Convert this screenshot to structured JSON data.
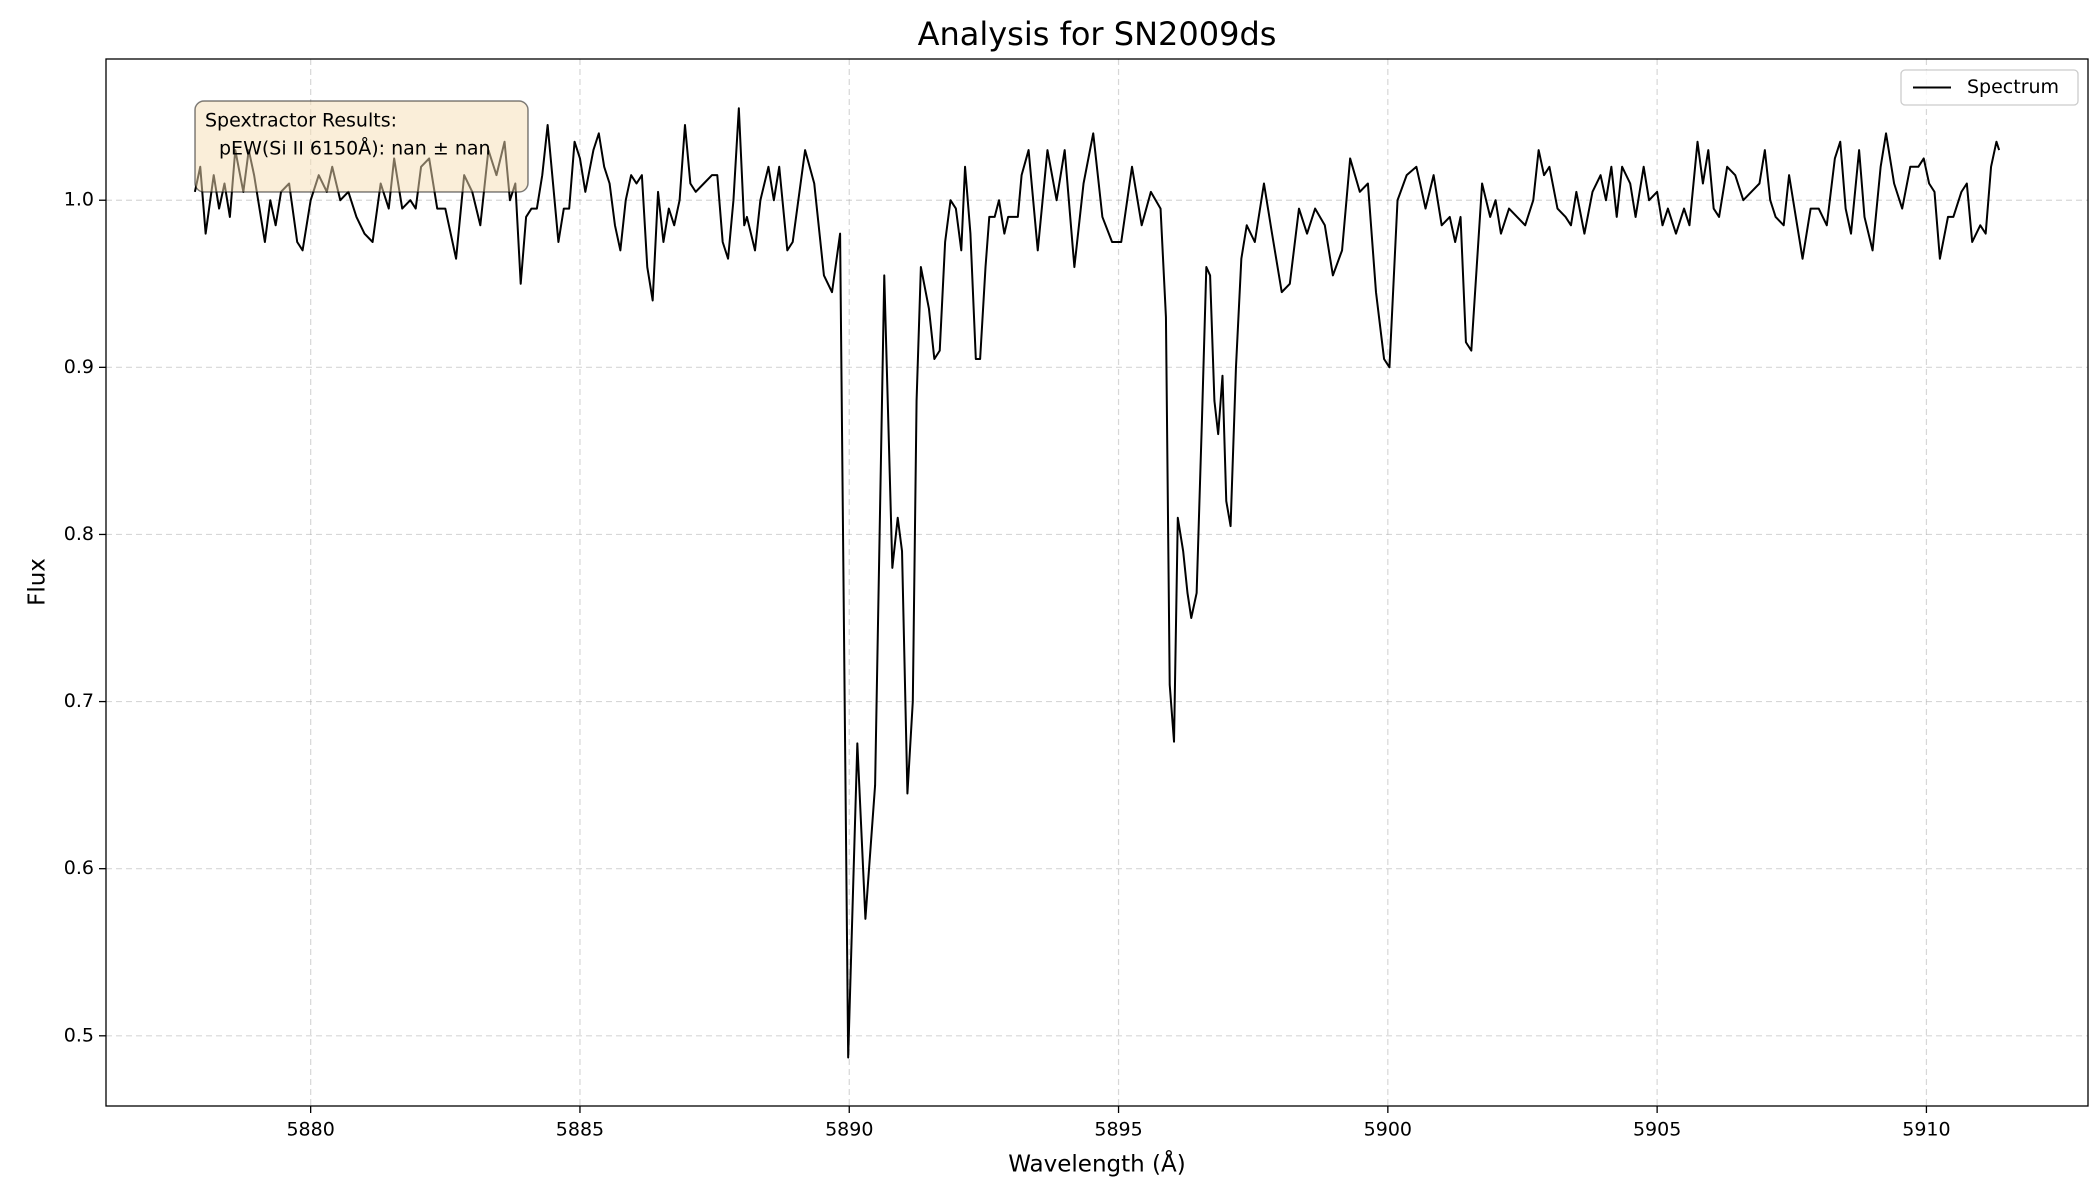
{
  "chart_data": {
    "type": "line",
    "title": "Analysis for SN2009ds",
    "xlabel": "Wavelength (Å)",
    "ylabel": "Flux",
    "annotation": [
      "Spextractor Results:",
      "pEW(Si II 6150Å): nan ± nan"
    ],
    "xlim": [
      5876.2,
      5913.0
    ],
    "ylim": [
      0.458,
      1.0845
    ],
    "xticks": [
      5880,
      5885,
      5890,
      5895,
      5900,
      5905,
      5910
    ],
    "yticks": [
      0.5,
      0.6,
      0.7,
      0.8,
      0.9,
      {
        "value": 1,
        "label": "1.0"
      }
    ],
    "grid": true,
    "legend": "upper right",
    "x": [
      5877.85,
      5877.95,
      5878.05,
      5878.2,
      5878.3,
      5878.4,
      5878.5,
      5878.6,
      5878.75,
      5878.85,
      5878.95,
      5879.05,
      5879.15,
      5879.25,
      5879.35,
      5879.45,
      5879.6,
      5879.75,
      5879.85,
      5880.0,
      5880.15,
      5880.3,
      5880.4,
      5880.55,
      5880.7,
      5880.85,
      5881.0,
      5881.15,
      5881.3,
      5881.45,
      5881.55,
      5881.7,
      5881.85,
      5881.95,
      5882.05,
      5882.2,
      5882.35,
      5882.5,
      5882.7,
      5882.85,
      5883.0,
      5883.15,
      5883.3,
      5883.45,
      5883.6,
      5883.7,
      5883.8,
      5883.9,
      5884.0,
      5884.1,
      5884.2,
      5884.3,
      5884.4,
      5884.5,
      5884.6,
      5884.7,
      5884.8,
      5884.9,
      5885.0,
      5885.1,
      5885.25,
      5885.35,
      5885.45,
      5885.55,
      5885.65,
      5885.75,
      5885.85,
      5885.95,
      5886.05,
      5886.15,
      5886.25,
      5886.35,
      5886.45,
      5886.55,
      5886.65,
      5886.75,
      5886.85,
      5886.95,
      5887.05,
      5887.15,
      5887.3,
      5887.45,
      5887.55,
      5887.65,
      5887.75,
      5887.85,
      5887.95,
      5888.05,
      5888.1,
      5888.25,
      5888.35,
      5888.5,
      5888.6,
      5888.7,
      5888.85,
      5888.95,
      5889.18,
      5889.35,
      5889.53,
      5889.68,
      5889.83,
      5889.98,
      5890.15,
      5890.3,
      5890.48,
      5890.65,
      5890.8,
      5890.9,
      5890.98,
      5891.08,
      5891.18,
      5891.25,
      5891.33,
      5891.48,
      5891.58,
      5891.68,
      5891.78,
      5891.88,
      5891.98,
      5892.08,
      5892.15,
      5892.25,
      5892.35,
      5892.43,
      5892.53,
      5892.6,
      5892.7,
      5892.78,
      5892.88,
      5892.95,
      5893.13,
      5893.2,
      5893.33,
      5893.5,
      5893.68,
      5893.85,
      5894.0,
      5894.18,
      5894.35,
      5894.53,
      5894.7,
      5894.88,
      5895.05,
      5895.25,
      5895.43,
      5895.6,
      5895.78,
      5895.88,
      5895.95,
      5896.03,
      5896.1,
      5896.2,
      5896.28,
      5896.35,
      5896.45,
      5896.55,
      5896.63,
      5896.7,
      5896.78,
      5896.85,
      5896.93,
      5897.0,
      5897.08,
      5897.18,
      5897.28,
      5897.38,
      5897.53,
      5897.7,
      5897.85,
      5898.03,
      5898.18,
      5898.35,
      5898.5,
      5898.65,
      5898.83,
      5898.98,
      5899.15,
      5899.3,
      5899.48,
      5899.63,
      5899.78,
      5899.93,
      5900.03,
      5900.18,
      5900.35,
      5900.53,
      5900.6,
      5900.7,
      5900.85,
      5901.0,
      5901.15,
      5901.25,
      5901.35,
      5901.45,
      5901.55,
      5901.65,
      5901.75,
      5901.9,
      5902.0,
      5902.1,
      5902.25,
      5902.4,
      5902.55,
      5902.7,
      5902.8,
      5902.9,
      5903.0,
      5903.15,
      5903.3,
      5903.4,
      5903.5,
      5903.65,
      5903.8,
      5903.95,
      5904.05,
      5904.15,
      5904.25,
      5904.35,
      5904.5,
      5904.6,
      5904.75,
      5904.85,
      5905.0,
      5905.1,
      5905.2,
      5905.35,
      5905.5,
      5905.6,
      5905.75,
      5905.85,
      5905.95,
      5906.05,
      5906.15,
      5906.3,
      5906.45,
      5906.6,
      5906.75,
      5906.9,
      5907.0,
      5907.1,
      5907.2,
      5907.35,
      5907.45,
      5907.6,
      5907.7,
      5907.85,
      5908.0,
      5908.15,
      5908.3,
      5908.4,
      5908.5,
      5908.6,
      5908.75,
      5908.85,
      5909.0,
      5909.15,
      5909.25,
      5909.4,
      5909.55,
      5909.7,
      5909.85,
      5909.95,
      5910.05,
      5910.15,
      5910.25,
      5910.4,
      5910.5,
      5910.65,
      5910.75,
      5910.85,
      5911.0,
      5911.1,
      5911.2,
      5911.3,
      5911.35
    ],
    "series": [
      {
        "name": "Spectrum",
        "color": "#000000",
        "values": [
          1.005,
          1.02,
          0.98,
          1.015,
          0.995,
          1.01,
          0.99,
          1.03,
          1.005,
          1.03,
          1.015,
          0.995,
          0.975,
          1.0,
          0.985,
          1.005,
          1.01,
          0.975,
          0.97,
          1.0,
          1.015,
          1.005,
          1.02,
          1.0,
          1.005,
          0.99,
          0.98,
          0.975,
          1.01,
          0.995,
          1.025,
          0.995,
          1.0,
          0.995,
          1.02,
          1.025,
          0.995,
          0.995,
          0.965,
          1.015,
          1.005,
          0.985,
          1.03,
          1.015,
          1.035,
          1.0,
          1.01,
          0.95,
          0.99,
          0.995,
          0.995,
          1.015,
          1.045,
          1.01,
          0.975,
          0.995,
          0.995,
          1.035,
          1.025,
          1.005,
          1.03,
          1.04,
          1.02,
          1.01,
          0.985,
          0.97,
          1.0,
          1.015,
          1.01,
          1.015,
          0.96,
          0.94,
          1.005,
          0.975,
          0.995,
          0.985,
          1.0,
          1.045,
          1.01,
          1.005,
          1.01,
          1.015,
          1.015,
          0.975,
          0.965,
          1.0,
          1.055,
          0.985,
          0.99,
          0.97,
          1.0,
          1.02,
          1.0,
          1.02,
          0.97,
          0.975,
          1.03,
          1.01,
          0.955,
          0.945,
          0.98,
          0.487,
          0.675,
          0.57,
          0.65,
          0.955,
          0.78,
          0.81,
          0.79,
          0.645,
          0.7,
          0.88,
          0.96,
          0.935,
          0.905,
          0.91,
          0.975,
          1.0,
          0.995,
          0.97,
          1.02,
          0.98,
          0.905,
          0.905,
          0.96,
          0.99,
          0.99,
          1.0,
          0.98,
          0.99,
          0.99,
          1.015,
          1.03,
          0.97,
          1.03,
          1.0,
          1.03,
          0.96,
          1.01,
          1.04,
          0.99,
          0.975,
          0.975,
          1.02,
          0.985,
          1.005,
          0.995,
          0.93,
          0.71,
          0.676,
          0.81,
          0.79,
          0.765,
          0.75,
          0.765,
          0.87,
          0.96,
          0.955,
          0.88,
          0.86,
          0.895,
          0.82,
          0.805,
          0.9,
          0.965,
          0.985,
          0.975,
          1.01,
          0.98,
          0.945,
          0.95,
          0.995,
          0.98,
          0.995,
          0.985,
          0.955,
          0.97,
          1.025,
          1.005,
          1.01,
          0.945,
          0.905,
          0.9,
          1.0,
          1.015,
          1.02,
          1.01,
          0.995,
          1.015,
          0.985,
          0.99,
          0.975,
          0.99,
          0.915,
          0.91,
          0.96,
          1.01,
          0.99,
          1.0,
          0.98,
          0.995,
          0.99,
          0.985,
          1.0,
          1.03,
          1.015,
          1.02,
          0.995,
          0.99,
          0.985,
          1.005,
          0.98,
          1.005,
          1.015,
          1.0,
          1.02,
          0.99,
          1.02,
          1.01,
          0.99,
          1.02,
          1.0,
          1.005,
          0.985,
          0.995,
          0.98,
          0.995,
          0.985,
          1.035,
          1.01,
          1.03,
          0.995,
          0.99,
          1.02,
          1.015,
          1.0,
          1.005,
          1.01,
          1.03,
          1.0,
          0.99,
          0.985,
          1.015,
          0.985,
          0.965,
          0.995,
          0.995,
          0.985,
          1.025,
          1.035,
          0.995,
          0.98,
          1.03,
          0.99,
          0.97,
          1.02,
          1.04,
          1.01,
          0.995,
          1.02,
          1.02,
          1.025,
          1.01,
          1.005,
          0.965,
          0.99,
          0.99,
          1.005,
          1.01,
          0.975,
          0.985,
          0.98,
          1.02,
          1.035,
          1.03
        ]
      }
    ]
  }
}
